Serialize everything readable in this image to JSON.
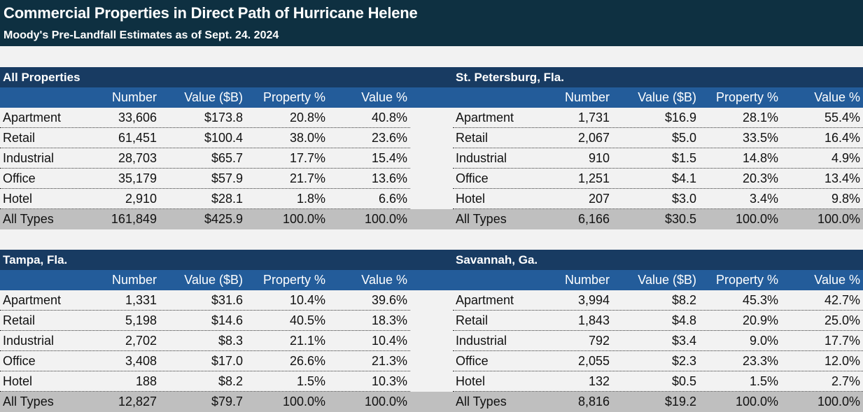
{
  "title": "Commercial Properties in Direct Path of Hurricane Helene",
  "subtitle": "Moody's Pre-Landfall Estimates as of Sept. 24. 2024",
  "columns": [
    "",
    "Number",
    "Value ($B)",
    "Property %",
    "Value %"
  ],
  "colors": {
    "title_band": "#0e3041",
    "section_band": "#183b62",
    "column_band": "#235c9a",
    "total_row": "#bfbfbf",
    "background": "#f2f2f2"
  },
  "panels": [
    {
      "title": "All Properties",
      "rows": [
        {
          "type": "Apartment",
          "number": "33,606",
          "value": "$173.8",
          "property_pct": "20.8%",
          "value_pct": "40.8%"
        },
        {
          "type": "Retail",
          "number": "61,451",
          "value": "$100.4",
          "property_pct": "38.0%",
          "value_pct": "23.6%"
        },
        {
          "type": "Industrial",
          "number": "28,703",
          "value": "$65.7",
          "property_pct": "17.7%",
          "value_pct": "15.4%"
        },
        {
          "type": "Office",
          "number": "35,179",
          "value": "$57.9",
          "property_pct": "21.7%",
          "value_pct": "13.6%"
        },
        {
          "type": "Hotel",
          "number": "2,910",
          "value": "$28.1",
          "property_pct": "1.8%",
          "value_pct": "6.6%"
        }
      ],
      "total": {
        "type": "All Types",
        "number": "161,849",
        "value": "$425.9",
        "property_pct": "100.0%",
        "value_pct": "100.0%"
      }
    },
    {
      "title": "St. Petersburg, Fla.",
      "rows": [
        {
          "type": "Apartment",
          "number": "1,731",
          "value": "$16.9",
          "property_pct": "28.1%",
          "value_pct": "55.4%"
        },
        {
          "type": "Retail",
          "number": "2,067",
          "value": "$5.0",
          "property_pct": "33.5%",
          "value_pct": "16.4%"
        },
        {
          "type": "Industrial",
          "number": "910",
          "value": "$1.5",
          "property_pct": "14.8%",
          "value_pct": "4.9%"
        },
        {
          "type": "Office",
          "number": "1,251",
          "value": "$4.1",
          "property_pct": "20.3%",
          "value_pct": "13.4%"
        },
        {
          "type": "Hotel",
          "number": "207",
          "value": "$3.0",
          "property_pct": "3.4%",
          "value_pct": "9.8%"
        }
      ],
      "total": {
        "type": "All Types",
        "number": "6,166",
        "value": "$30.5",
        "property_pct": "100.0%",
        "value_pct": "100.0%"
      }
    },
    {
      "title": "Tampa, Fla.",
      "rows": [
        {
          "type": "Apartment",
          "number": "1,331",
          "value": "$31.6",
          "property_pct": "10.4%",
          "value_pct": "39.6%"
        },
        {
          "type": "Retail",
          "number": "5,198",
          "value": "$14.6",
          "property_pct": "40.5%",
          "value_pct": "18.3%"
        },
        {
          "type": "Industrial",
          "number": "2,702",
          "value": "$8.3",
          "property_pct": "21.1%",
          "value_pct": "10.4%"
        },
        {
          "type": "Office",
          "number": "3,408",
          "value": "$17.0",
          "property_pct": "26.6%",
          "value_pct": "21.3%"
        },
        {
          "type": "Hotel",
          "number": "188",
          "value": "$8.2",
          "property_pct": "1.5%",
          "value_pct": "10.3%"
        }
      ],
      "total": {
        "type": "All Types",
        "number": "12,827",
        "value": "$79.7",
        "property_pct": "100.0%",
        "value_pct": "100.0%"
      }
    },
    {
      "title": "Savannah, Ga.",
      "rows": [
        {
          "type": "Apartment",
          "number": "3,994",
          "value": "$8.2",
          "property_pct": "45.3%",
          "value_pct": "42.7%"
        },
        {
          "type": "Retail",
          "number": "1,843",
          "value": "$4.8",
          "property_pct": "20.9%",
          "value_pct": "25.0%"
        },
        {
          "type": "Industrial",
          "number": "792",
          "value": "$3.4",
          "property_pct": "9.0%",
          "value_pct": "17.7%"
        },
        {
          "type": "Office",
          "number": "2,055",
          "value": "$2.3",
          "property_pct": "23.3%",
          "value_pct": "12.0%"
        },
        {
          "type": "Hotel",
          "number": "132",
          "value": "$0.5",
          "property_pct": "1.5%",
          "value_pct": "2.7%"
        }
      ],
      "total": {
        "type": "All Types",
        "number": "8,816",
        "value": "$19.2",
        "property_pct": "100.0%",
        "value_pct": "100.0%"
      }
    }
  ]
}
